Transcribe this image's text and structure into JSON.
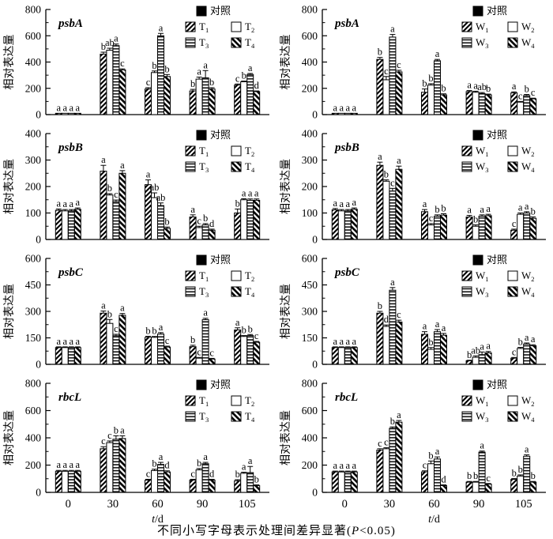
{
  "common": {
    "ylabel": "相对表达量",
    "categories": [
      "0",
      "30",
      "60",
      "90",
      "105"
    ],
    "xlabel_italic": "t",
    "xlabel_rest": "/d",
    "control_label": "对照",
    "colors": {
      "foreground": "#000000",
      "background": "#ffffff"
    }
  },
  "caption": {
    "text_before": "不同小写字母表示处理间差异显著(",
    "italic": "P",
    "text_after": "<0.05)"
  },
  "chart_data": [
    {
      "type": "bar",
      "gene": "psbA",
      "position": "row1-left",
      "ylim": [
        0,
        800
      ],
      "yticks": [
        0,
        200,
        400,
        600,
        800
      ],
      "show_x_labels": false,
      "series": [
        {
          "base": "T",
          "sub": "1",
          "pattern": "diag",
          "values": [
            10,
            460,
            195,
            180,
            225
          ],
          "err": [
            0,
            15,
            10,
            12,
            8
          ],
          "letters": [
            "a",
            "b",
            "c",
            "b",
            "c"
          ]
        },
        {
          "base": "T",
          "sub": "2",
          "pattern": "empty",
          "values": [
            10,
            490,
            320,
            270,
            250
          ],
          "err": [
            0,
            15,
            12,
            15,
            5
          ],
          "letters": [
            "a",
            "ab",
            "b",
            "a",
            "b"
          ]
        },
        {
          "base": "T",
          "sub": "3",
          "pattern": "hlines",
          "values": [
            10,
            525,
            600,
            280,
            305
          ],
          "err": [
            0,
            12,
            18,
            55,
            8
          ],
          "letters": [
            "a",
            "a",
            "a",
            "a",
            "a"
          ]
        },
        {
          "base": "T",
          "sub": "4",
          "pattern": "backdiag",
          "values": [
            10,
            340,
            290,
            195,
            175
          ],
          "err": [
            0,
            8,
            15,
            10,
            5
          ],
          "letters": [
            "a",
            "c",
            "b",
            "b",
            "d"
          ]
        }
      ]
    },
    {
      "type": "bar",
      "gene": "psbA",
      "position": "row1-right",
      "ylim": [
        0,
        800
      ],
      "yticks": [
        0,
        200,
        400,
        600,
        800
      ],
      "show_x_labels": false,
      "series": [
        {
          "base": "W",
          "sub": "1",
          "pattern": "diag",
          "values": [
            10,
            420,
            170,
            175,
            165
          ],
          "err": [
            0,
            15,
            25,
            8,
            8
          ],
          "letters": [
            "a",
            "b",
            "b",
            "a",
            "a"
          ]
        },
        {
          "base": "W",
          "sub": "2",
          "pattern": "empty",
          "values": [
            10,
            265,
            225,
            170,
            95
          ],
          "err": [
            0,
            25,
            10,
            8,
            5
          ],
          "letters": [
            "a",
            "c",
            "b",
            "a",
            "c"
          ]
        },
        {
          "base": "W",
          "sub": "3",
          "pattern": "hlines",
          "values": [
            10,
            590,
            410,
            160,
            145
          ],
          "err": [
            0,
            20,
            10,
            8,
            8
          ],
          "letters": [
            "a",
            "a",
            "a",
            "ab",
            "b"
          ]
        },
        {
          "base": "W",
          "sub": "4",
          "pattern": "backdiag",
          "values": [
            10,
            325,
            150,
            150,
            120
          ],
          "err": [
            0,
            12,
            8,
            6,
            5
          ],
          "letters": [
            "a",
            "c",
            "b",
            "b",
            "c"
          ]
        }
      ]
    },
    {
      "type": "bar",
      "gene": "psbB",
      "position": "row2-left",
      "ylim": [
        0,
        400
      ],
      "yticks": [
        0,
        100,
        200,
        300,
        400
      ],
      "show_x_labels": false,
      "series": [
        {
          "base": "T",
          "sub": "1",
          "pattern": "diag",
          "values": [
            110,
            258,
            207,
            85,
            100
          ],
          "err": [
            5,
            22,
            18,
            8,
            15
          ],
          "letters": [
            "a",
            "a",
            "a",
            "a",
            "b"
          ]
        },
        {
          "base": "T",
          "sub": "2",
          "pattern": "empty",
          "values": [
            108,
            168,
            158,
            45,
            150
          ],
          "err": [
            5,
            5,
            18,
            5,
            4
          ],
          "letters": [
            "a",
            "b",
            "ab",
            "c",
            "a"
          ]
        },
        {
          "base": "T",
          "sub": "3",
          "pattern": "hlines",
          "values": [
            108,
            143,
            128,
            55,
            148
          ],
          "err": [
            5,
            6,
            10,
            5,
            5
          ],
          "letters": [
            "a",
            "c",
            "ab",
            "b",
            "a"
          ]
        },
        {
          "base": "T",
          "sub": "4",
          "pattern": "backdiag",
          "values": [
            114,
            250,
            42,
            35,
            148
          ],
          "err": [
            5,
            10,
            5,
            4,
            5
          ],
          "letters": [
            "a",
            "a",
            "b",
            "d",
            "a"
          ]
        }
      ]
    },
    {
      "type": "bar",
      "gene": "psbB",
      "position": "row2-right",
      "ylim": [
        0,
        400
      ],
      "yticks": [
        0,
        100,
        200,
        300,
        400
      ],
      "show_x_labels": false,
      "series": [
        {
          "base": "W",
          "sub": "1",
          "pattern": "diag",
          "values": [
            112,
            280,
            105,
            85,
            35
          ],
          "err": [
            5,
            12,
            8,
            6,
            4
          ],
          "letters": [
            "a",
            "a",
            "a",
            "a",
            "c"
          ]
        },
        {
          "base": "W",
          "sub": "2",
          "pattern": "empty",
          "values": [
            108,
            220,
            55,
            50,
            95
          ],
          "err": [
            5,
            5,
            5,
            5,
            5
          ],
          "letters": [
            "a",
            "b",
            "c",
            "b",
            "a"
          ]
        },
        {
          "base": "W",
          "sub": "3",
          "pattern": "hlines",
          "values": [
            108,
            183,
            88,
            88,
            100
          ],
          "err": [
            5,
            10,
            5,
            5,
            5
          ],
          "letters": [
            "a",
            "c",
            "b",
            "a",
            "a"
          ]
        },
        {
          "base": "W",
          "sub": "4",
          "pattern": "backdiag",
          "values": [
            114,
            265,
            92,
            90,
            80
          ],
          "err": [
            5,
            12,
            5,
            5,
            5
          ],
          "letters": [
            "a",
            "a",
            "b",
            "a",
            "b"
          ]
        }
      ]
    },
    {
      "type": "bar",
      "gene": "psbC",
      "position": "row3-left",
      "ylim": [
        0,
        600
      ],
      "yticks": [
        0,
        150,
        300,
        450,
        600
      ],
      "show_x_labels": false,
      "series": [
        {
          "base": "T",
          "sub": "1",
          "pattern": "diag",
          "values": [
            95,
            290,
            153,
            100,
            195
          ],
          "err": [
            4,
            12,
            6,
            8,
            12
          ],
          "letters": [
            "a",
            "a",
            "b",
            "b",
            "a"
          ]
        },
        {
          "base": "T",
          "sub": "2",
          "pattern": "empty",
          "values": [
            95,
            232,
            153,
            35,
            158
          ],
          "err": [
            4,
            22,
            5,
            4,
            5
          ],
          "letters": [
            "a",
            "b",
            "b",
            "c",
            "b"
          ]
        },
        {
          "base": "T",
          "sub": "3",
          "pattern": "hlines",
          "values": [
            95,
            162,
            172,
            253,
            163
          ],
          "err": [
            4,
            8,
            8,
            8,
            6
          ],
          "letters": [
            "a",
            "c",
            "a",
            "a",
            "b"
          ]
        },
        {
          "base": "T",
          "sub": "4",
          "pattern": "backdiag",
          "values": [
            95,
            278,
            98,
            30,
            125
          ],
          "err": [
            4,
            10,
            5,
            4,
            5
          ],
          "letters": [
            "a",
            "a",
            "c",
            "c",
            "c"
          ]
        }
      ]
    },
    {
      "type": "bar",
      "gene": "psbC",
      "position": "row3-right",
      "ylim": [
        0,
        600
      ],
      "yticks": [
        0,
        150,
        300,
        450,
        600
      ],
      "show_x_labels": false,
      "series": [
        {
          "base": "W",
          "sub": "1",
          "pattern": "diag",
          "values": [
            95,
            290,
            170,
            20,
            35
          ],
          "err": [
            4,
            10,
            15,
            3,
            4
          ],
          "letters": [
            "a",
            "b",
            "a",
            "b",
            "c"
          ]
        },
        {
          "base": "W",
          "sub": "2",
          "pattern": "empty",
          "values": [
            95,
            215,
            85,
            40,
            90
          ],
          "err": [
            4,
            8,
            10,
            8,
            6
          ],
          "letters": [
            "a",
            "d",
            "b",
            "ab",
            "b"
          ]
        },
        {
          "base": "W",
          "sub": "3",
          "pattern": "hlines",
          "values": [
            95,
            420,
            185,
            55,
            115
          ],
          "err": [
            4,
            15,
            12,
            15,
            6
          ],
          "letters": [
            "a",
            "a",
            "a",
            "a",
            "a"
          ]
        },
        {
          "base": "W",
          "sub": "4",
          "pattern": "backdiag",
          "values": [
            95,
            240,
            165,
            65,
            105
          ],
          "err": [
            4,
            10,
            10,
            8,
            6
          ],
          "letters": [
            "a",
            "c",
            "a",
            "a",
            "a"
          ]
        }
      ]
    },
    {
      "type": "bar",
      "gene": "rbcL",
      "position": "row4-left",
      "ylim": [
        0,
        800
      ],
      "yticks": [
        0,
        200,
        400,
        600,
        800
      ],
      "show_x_labels": true,
      "series": [
        {
          "base": "T",
          "sub": "1",
          "pattern": "diag",
          "values": [
            155,
            320,
            90,
            90,
            85
          ],
          "err": [
            6,
            15,
            6,
            6,
            8
          ],
          "letters": [
            "a",
            "c",
            "c",
            "c",
            "b"
          ]
        },
        {
          "base": "T",
          "sub": "2",
          "pattern": "empty",
          "values": [
            155,
            365,
            160,
            165,
            140
          ],
          "err": [
            6,
            12,
            10,
            10,
            8
          ],
          "letters": [
            "a",
            "c",
            "b",
            "b",
            "a"
          ]
        },
        {
          "base": "T",
          "sub": "3",
          "pattern": "hlines",
          "values": [
            155,
            390,
            205,
            210,
            145
          ],
          "err": [
            6,
            25,
            15,
            10,
            45
          ],
          "letters": [
            "a",
            "b",
            "a",
            "a",
            "a"
          ]
        },
        {
          "base": "T",
          "sub": "4",
          "pattern": "backdiag",
          "values": [
            155,
            395,
            150,
            90,
            50
          ],
          "err": [
            6,
            20,
            8,
            6,
            5
          ],
          "letters": [
            "a",
            "a",
            "d",
            "d",
            "b"
          ]
        }
      ]
    },
    {
      "type": "bar",
      "gene": "rbcL",
      "position": "row4-right",
      "ylim": [
        0,
        800
      ],
      "yticks": [
        0,
        200,
        400,
        600,
        800
      ],
      "show_x_labels": true,
      "series": [
        {
          "base": "W",
          "sub": "1",
          "pattern": "diag",
          "values": [
            150,
            310,
            150,
            75,
            95
          ],
          "err": [
            6,
            10,
            8,
            5,
            6
          ],
          "letters": [
            "a",
            "c",
            "c",
            "b",
            "b"
          ]
        },
        {
          "base": "W",
          "sub": "2",
          "pattern": "empty",
          "values": [
            150,
            320,
            210,
            75,
            120
          ],
          "err": [
            6,
            8,
            20,
            5,
            8
          ],
          "letters": [
            "a",
            "c",
            "b",
            "b",
            "b"
          ]
        },
        {
          "base": "W",
          "sub": "3",
          "pattern": "hlines",
          "values": [
            150,
            470,
            245,
            295,
            265
          ],
          "err": [
            6,
            10,
            15,
            8,
            10
          ],
          "letters": [
            "a",
            "b",
            "a",
            "a",
            "a"
          ]
        },
        {
          "base": "W",
          "sub": "4",
          "pattern": "backdiag",
          "values": [
            150,
            515,
            50,
            60,
            75
          ],
          "err": [
            6,
            12,
            5,
            5,
            5
          ],
          "letters": [
            "a",
            "a",
            "d",
            "c",
            "b"
          ]
        }
      ]
    }
  ]
}
